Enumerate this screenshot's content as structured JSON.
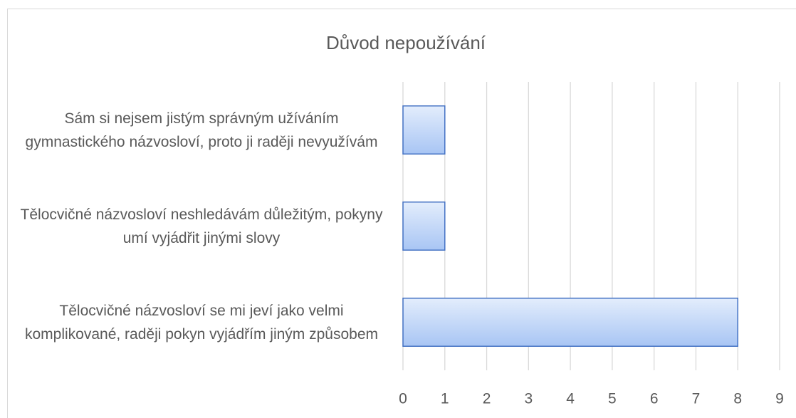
{
  "chart_data": {
    "type": "bar",
    "orientation": "horizontal",
    "title": "Důvod nepoužívání",
    "categories": [
      "Sám si nejsem jistým správným užíváním gymnastického názvosloví, proto ji raději nevyužívám",
      "Tělocvičné názvosloví neshledávám důležitým, pokyny umí vyjádřit jinými slovy",
      "Tělocvičné názvosloví se mi jeví jako velmi komplikované, raději pokyn vyjádřím jiným způsobem"
    ],
    "values": [
      1,
      1,
      8
    ],
    "color": "#4472c4",
    "xlim": [
      0,
      9
    ],
    "xticks": [
      0,
      1,
      2,
      3,
      4,
      5,
      6,
      7,
      8,
      9
    ],
    "grid": true
  }
}
